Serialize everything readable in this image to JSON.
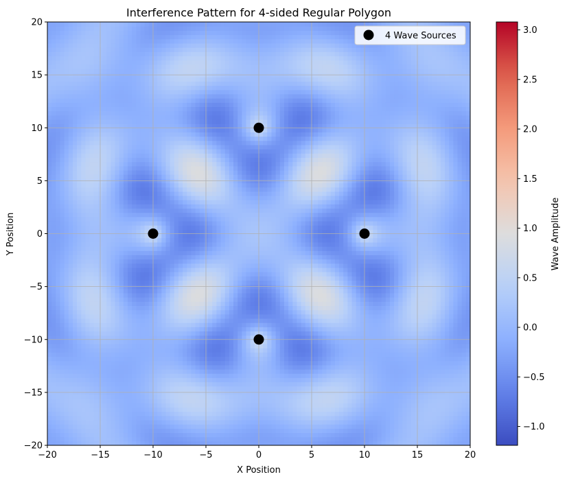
{
  "chart_data": {
    "type": "heatmap",
    "title": "Interference Pattern for 4-sided Regular Polygon",
    "xlabel": "X Position",
    "ylabel": "Y Position",
    "xlim": [
      -20,
      20
    ],
    "ylim": [
      -20,
      20
    ],
    "x_ticks": [
      -20,
      -15,
      -10,
      -5,
      0,
      5,
      10,
      15,
      20
    ],
    "y_ticks": [
      -20,
      -15,
      -10,
      -5,
      0,
      5,
      10,
      15,
      20
    ],
    "grid": true,
    "colormap": "coolwarm",
    "colorbar": {
      "label": "Wave Amplitude",
      "range": [
        -1.19,
        3.08
      ],
      "ticks": [
        -1.0,
        -0.5,
        0.0,
        0.5,
        1.0,
        1.5,
        2.0,
        2.5,
        3.0
      ]
    },
    "sources": {
      "name": "4 Wave Sources",
      "points": [
        {
          "x": 10,
          "y": 0
        },
        {
          "x": 0,
          "y": 10
        },
        {
          "x": -10,
          "y": 0
        },
        {
          "x": 0,
          "y": -10
        }
      ],
      "color": "#000000"
    },
    "legend": {
      "location": "top-right",
      "entries": [
        "4 Wave Sources"
      ]
    }
  }
}
